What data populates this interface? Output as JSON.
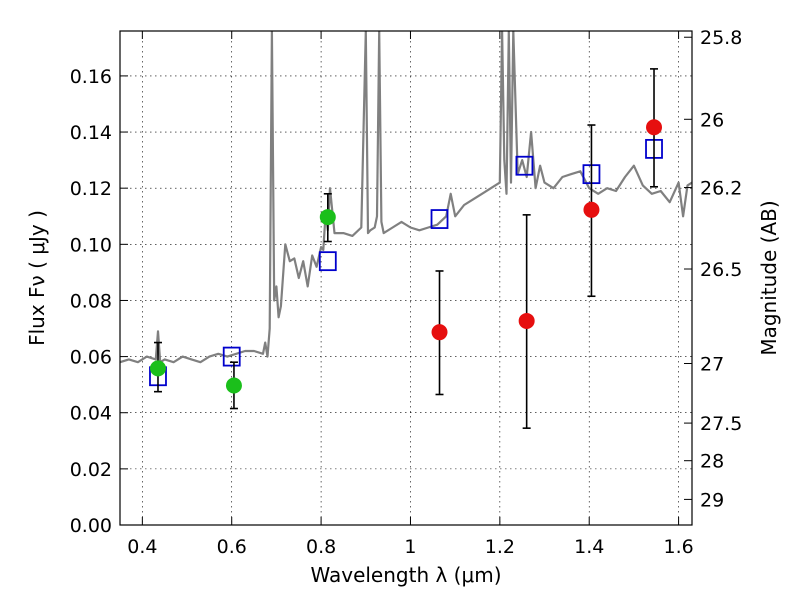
{
  "chart_data": {
    "type": "scatter",
    "xlabel": "Wavelength  λ (μm)",
    "ylabel": "Flux  Fν  ( μJy )",
    "y2label": "Magnitude (AB)",
    "xlim": [
      0.35,
      1.63
    ],
    "ylim": [
      0.0,
      0.176
    ],
    "grid": true,
    "x_ticks": [
      0.4,
      0.6,
      0.8,
      1.0,
      1.2,
      1.4,
      1.6
    ],
    "x_tick_labels": [
      "0.4",
      "0.6",
      "0.8",
      "1",
      "1.2",
      "1.4",
      "1.6"
    ],
    "y_ticks": [
      0.0,
      0.02,
      0.04,
      0.06,
      0.08,
      0.1,
      0.12,
      0.14,
      0.16
    ],
    "y_tick_labels": [
      "0.00",
      "0.02",
      "0.04",
      "0.06",
      "0.08",
      "0.10",
      "0.12",
      "0.14",
      "0.16"
    ],
    "y2_ticks": [
      25.8,
      26,
      26.2,
      26.5,
      27,
      27.5,
      28,
      29
    ],
    "y2_tick_labels": [
      "25.8",
      "26",
      "26.2",
      "26.5",
      "27",
      "27.5",
      "28",
      "29"
    ],
    "colors": {
      "spectrum": "#808080",
      "model": "#0000cc",
      "green": "#1bbf1b",
      "red": "#e60f0f",
      "errbar": "#000000"
    },
    "series": [
      {
        "style": "line",
        "color": "#808080",
        "x": [
          0.35,
          0.37,
          0.39,
          0.41,
          0.43,
          0.435,
          0.44,
          0.45,
          0.47,
          0.49,
          0.51,
          0.53,
          0.55,
          0.57,
          0.59,
          0.61,
          0.63,
          0.65,
          0.67,
          0.675,
          0.68,
          0.685,
          0.69,
          0.695,
          0.7,
          0.705,
          0.71,
          0.72,
          0.73,
          0.74,
          0.75,
          0.76,
          0.77,
          0.78,
          0.79,
          0.8,
          0.805,
          0.81,
          0.815,
          0.82,
          0.83,
          0.85,
          0.87,
          0.89,
          0.9,
          0.905,
          0.91,
          0.92,
          0.925,
          0.93,
          0.935,
          0.94,
          0.96,
          0.98,
          1.0,
          1.02,
          1.04,
          1.06,
          1.08,
          1.09,
          1.1,
          1.12,
          1.14,
          1.16,
          1.18,
          1.2,
          1.205,
          1.21,
          1.215,
          1.22,
          1.225,
          1.23,
          1.24,
          1.25,
          1.26,
          1.27,
          1.28,
          1.29,
          1.3,
          1.32,
          1.34,
          1.36,
          1.38,
          1.4,
          1.42,
          1.44,
          1.46,
          1.48,
          1.5,
          1.52,
          1.54,
          1.56,
          1.58,
          1.6,
          1.61,
          1.62,
          1.63
        ],
        "y": [
          0.058,
          0.059,
          0.058,
          0.06,
          0.059,
          0.069,
          0.058,
          0.059,
          0.058,
          0.06,
          0.059,
          0.058,
          0.06,
          0.061,
          0.06,
          0.061,
          0.062,
          0.062,
          0.061,
          0.065,
          0.06,
          0.07,
          0.176,
          0.08,
          0.085,
          0.074,
          0.078,
          0.1,
          0.094,
          0.095,
          0.088,
          0.094,
          0.085,
          0.096,
          0.092,
          0.099,
          0.098,
          0.111,
          0.105,
          0.12,
          0.104,
          0.104,
          0.103,
          0.106,
          0.176,
          0.104,
          0.105,
          0.106,
          0.11,
          0.176,
          0.108,
          0.104,
          0.106,
          0.108,
          0.106,
          0.105,
          0.106,
          0.107,
          0.11,
          0.118,
          0.11,
          0.114,
          0.116,
          0.118,
          0.12,
          0.122,
          0.176,
          0.13,
          0.118,
          0.176,
          0.122,
          0.176,
          0.125,
          0.13,
          0.124,
          0.14,
          0.12,
          0.128,
          0.122,
          0.12,
          0.124,
          0.125,
          0.126,
          0.12,
          0.118,
          0.12,
          0.119,
          0.124,
          0.128,
          0.121,
          0.118,
          0.119,
          0.115,
          0.122,
          0.11,
          0.121,
          0.122
        ]
      },
      {
        "style": "square",
        "color": "#0000cc",
        "x": [
          0.435,
          0.6,
          0.815,
          1.065,
          1.255,
          1.405,
          1.545
        ],
        "y": [
          0.053,
          0.06,
          0.094,
          0.109,
          0.128,
          0.125,
          0.134
        ]
      },
      {
        "style": "circle",
        "color": "#1bbf1b",
        "x": [
          0.435,
          0.605,
          0.815
        ],
        "y": [
          0.0558,
          0.0497,
          0.1097
        ],
        "yerr_low": [
          0.0475,
          0.0415,
          0.101
        ],
        "yerr_high": [
          0.065,
          0.058,
          0.118
        ]
      },
      {
        "style": "circle",
        "color": "#e60f0f",
        "x": [
          1.065,
          1.26,
          1.405,
          1.545
        ],
        "y": [
          0.0687,
          0.0727,
          0.1123,
          0.1417
        ],
        "yerr_low": [
          0.0465,
          0.0345,
          0.0815,
          0.1205
        ],
        "yerr_high": [
          0.0905,
          0.1105,
          0.1425,
          0.1625
        ]
      }
    ]
  }
}
